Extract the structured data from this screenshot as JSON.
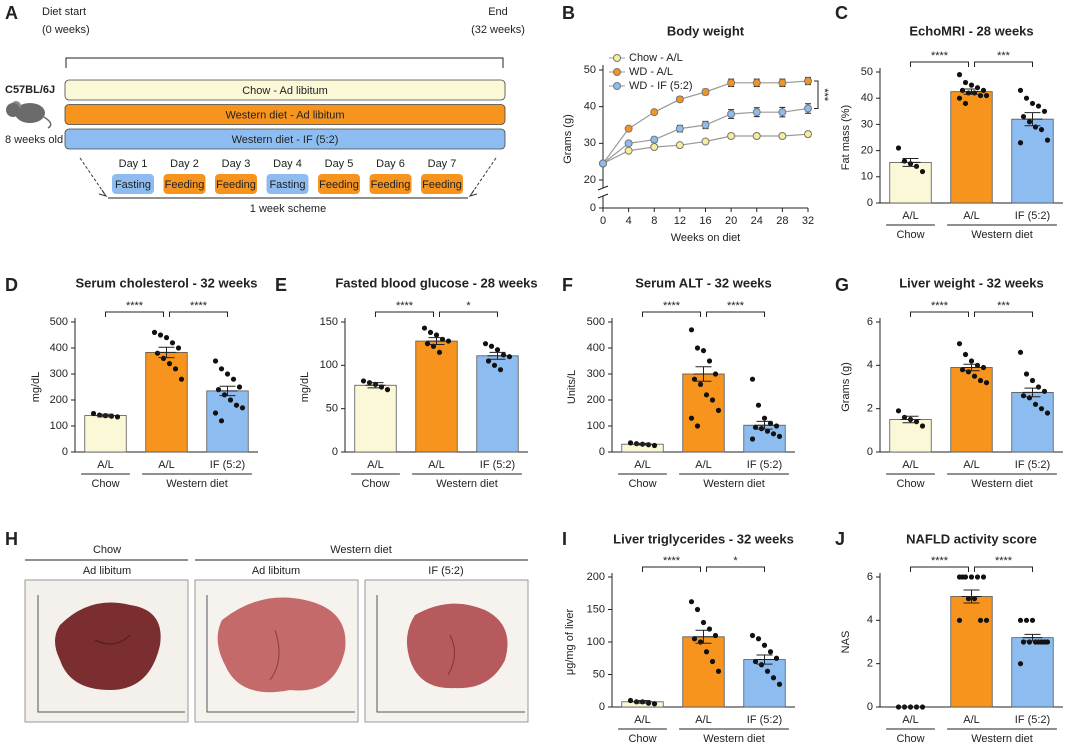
{
  "diagram": {
    "label": "A",
    "start": [
      "Diet start",
      "(0 weeks)"
    ],
    "end": [
      "End",
      "(32 weeks)"
    ],
    "strain": "C57BL/6J",
    "age": "8 weeks old",
    "groups": [
      {
        "name": "Chow - Ad libitum",
        "color": "#fbf8d8"
      },
      {
        "name": "Western diet - Ad libitum",
        "color": "#f7941d"
      },
      {
        "name": "Western diet - IF (5:2)",
        "color": "#8dbdf0"
      }
    ],
    "days": [
      {
        "day": "Day 1",
        "state": "Fasting",
        "color": "#8dbdf0"
      },
      {
        "day": "Day 2",
        "state": "Feeding",
        "color": "#f7941d"
      },
      {
        "day": "Day 3",
        "state": "Feeding",
        "color": "#f7941d"
      },
      {
        "day": "Day 4",
        "state": "Fasting",
        "color": "#8dbdf0"
      },
      {
        "day": "Day 5",
        "state": "Feeding",
        "color": "#f7941d"
      },
      {
        "day": "Day 6",
        "state": "Feeding",
        "color": "#f7941d"
      },
      {
        "day": "Day 7",
        "state": "Feeding",
        "color": "#f7941d"
      }
    ],
    "scheme": "1 week scheme"
  },
  "photos": {
    "label": "H",
    "groups": [
      {
        "name": "Chow",
        "panels": [
          "Ad libitum"
        ]
      },
      {
        "name": "Western diet",
        "panels": [
          "Ad libitum",
          "IF (5:2)"
        ]
      }
    ]
  },
  "chart_data": [
    {
      "type": "line",
      "label": "B",
      "title": "Body weight",
      "xlabel": "Weeks on diet",
      "ylabel": "Grams (g)",
      "x": [
        0,
        4,
        8,
        12,
        16,
        20,
        24,
        28,
        32
      ],
      "xlim": [
        0,
        32
      ],
      "xticks": [
        0,
        4,
        8,
        12,
        16,
        20,
        24,
        28,
        32
      ],
      "ylim": [
        20,
        50
      ],
      "yticks": [
        20,
        30,
        40,
        50
      ],
      "ybreak_tick": 0,
      "legend": "upper left",
      "annotation": "***",
      "series": [
        {
          "name": "Chow - A/L",
          "color": "#f5ef9a",
          "values": [
            24.5,
            28,
            29,
            29.5,
            30.5,
            32,
            32,
            32,
            32.5
          ],
          "errors": [
            0.5,
            0.5,
            0.5,
            0.5,
            0.5,
            0.6,
            0.6,
            0.6,
            0.7
          ]
        },
        {
          "name": "WD - A/L",
          "color": "#f7941d",
          "values": [
            24.5,
            34,
            38.5,
            42,
            44,
            46.5,
            46.5,
            46.5,
            47
          ],
          "errors": [
            0.4,
            0.5,
            0.6,
            0.7,
            0.8,
            1,
            1,
            1,
            1
          ]
        },
        {
          "name": "WD - IF (5:2)",
          "color": "#8dbdf0",
          "values": [
            24.5,
            30,
            31,
            34,
            35,
            38,
            38.5,
            38.5,
            39.5
          ],
          "errors": [
            0.4,
            0.6,
            0.7,
            0.9,
            1,
            1.2,
            1.2,
            1.3,
            1.3
          ]
        }
      ]
    },
    {
      "type": "bar",
      "label": "C",
      "title": "EchoMRI - 28 weeks",
      "ylabel": "Fat mass (%)",
      "categories": [
        "A/L",
        "A/L",
        "IF (5:2)"
      ],
      "groups": [
        {
          "name": "Chow",
          "count": 1
        },
        {
          "name": "Western diet",
          "count": 2
        }
      ],
      "colors": [
        "#fbf8d8",
        "#f7941d",
        "#8dbdf0"
      ],
      "values": [
        15.5,
        42.5,
        32
      ],
      "errors": [
        1.5,
        1,
        2.5
      ],
      "points": [
        [
          21,
          16,
          15,
          14,
          12
        ],
        [
          49,
          46,
          45,
          44,
          43,
          43,
          42,
          42,
          41,
          41,
          40,
          38
        ],
        [
          43,
          40,
          38,
          37,
          35,
          33,
          31,
          29,
          28,
          24,
          23
        ]
      ],
      "ylim": [
        0,
        50
      ],
      "yticks": [
        0,
        10,
        20,
        30,
        40,
        50
      ],
      "significance": [
        {
          "from": 0,
          "to": 1,
          "label": "****"
        },
        {
          "from": 1,
          "to": 2,
          "label": "***"
        }
      ]
    },
    {
      "type": "bar",
      "label": "D",
      "title": "Serum cholesterol - 32 weeks",
      "ylabel": "mg/dL",
      "categories": [
        "A/L",
        "A/L",
        "IF (5:2)"
      ],
      "groups": [
        {
          "name": "Chow",
          "count": 1
        },
        {
          "name": "Western diet",
          "count": 2
        }
      ],
      "colors": [
        "#fbf8d8",
        "#f7941d",
        "#8dbdf0"
      ],
      "values": [
        140,
        383,
        235
      ],
      "errors": [
        5,
        20,
        18
      ],
      "points": [
        [
          148,
          142,
          140,
          138,
          135
        ],
        [
          460,
          450,
          440,
          420,
          400,
          380,
          360,
          340,
          320,
          280
        ],
        [
          350,
          320,
          300,
          280,
          250,
          240,
          220,
          200,
          180,
          170,
          150,
          120
        ]
      ],
      "ylim": [
        0,
        500
      ],
      "yticks": [
        0,
        100,
        200,
        300,
        400,
        500
      ],
      "significance": [
        {
          "from": 0,
          "to": 1,
          "label": "****"
        },
        {
          "from": 1,
          "to": 2,
          "label": "****"
        }
      ]
    },
    {
      "type": "bar",
      "label": "E",
      "title": "Fasted blood glucose - 28 weeks",
      "ylabel": "mg/dL",
      "categories": [
        "A/L",
        "A/L",
        "IF (5:2)"
      ],
      "groups": [
        {
          "name": "Chow",
          "count": 1
        },
        {
          "name": "Western diet",
          "count": 2
        }
      ],
      "colors": [
        "#fbf8d8",
        "#f7941d",
        "#8dbdf0"
      ],
      "values": [
        77,
        128,
        111
      ],
      "errors": [
        3,
        4,
        4
      ],
      "points": [
        [
          82,
          80,
          78,
          75,
          72
        ],
        [
          143,
          138,
          135,
          130,
          128,
          125,
          122,
          115
        ],
        [
          125,
          122,
          118,
          112,
          110,
          105,
          100,
          95
        ]
      ],
      "ylim": [
        0,
        150
      ],
      "yticks": [
        0,
        50,
        100,
        150
      ],
      "significance": [
        {
          "from": 0,
          "to": 1,
          "label": "****"
        },
        {
          "from": 1,
          "to": 2,
          "label": "*"
        }
      ]
    },
    {
      "type": "bar",
      "label": "F",
      "title": "Serum ALT - 32 weeks",
      "ylabel": "Units/L",
      "categories": [
        "A/L",
        "A/L",
        "IF (5:2)"
      ],
      "groups": [
        {
          "name": "Chow",
          "count": 1
        },
        {
          "name": "Western diet",
          "count": 2
        }
      ],
      "colors": [
        "#fbf8d8",
        "#f7941d",
        "#8dbdf0"
      ],
      "values": [
        30,
        300,
        103
      ],
      "errors": [
        3,
        28,
        15
      ],
      "points": [
        [
          35,
          32,
          30,
          28,
          25
        ],
        [
          470,
          400,
          390,
          350,
          300,
          280,
          260,
          220,
          200,
          160,
          130,
          100
        ],
        [
          280,
          180,
          130,
          110,
          100,
          95,
          90,
          80,
          70,
          60,
          50
        ]
      ],
      "ylim": [
        0,
        500
      ],
      "yticks": [
        0,
        100,
        200,
        300,
        400,
        500
      ],
      "significance": [
        {
          "from": 0,
          "to": 1,
          "label": "****"
        },
        {
          "from": 1,
          "to": 2,
          "label": "****"
        }
      ]
    },
    {
      "type": "bar",
      "label": "G",
      "title": "Liver weight - 32 weeks",
      "ylabel": "Grams (g)",
      "categories": [
        "A/L",
        "A/L",
        "IF (5:2)"
      ],
      "groups": [
        {
          "name": "Chow",
          "count": 1
        },
        {
          "name": "Western diet",
          "count": 2
        }
      ],
      "colors": [
        "#fbf8d8",
        "#f7941d",
        "#8dbdf0"
      ],
      "values": [
        1.5,
        3.9,
        2.75
      ],
      "errors": [
        0.15,
        0.15,
        0.2
      ],
      "points": [
        [
          1.9,
          1.6,
          1.5,
          1.4,
          1.2
        ],
        [
          5,
          4.5,
          4.2,
          4,
          3.9,
          3.8,
          3.7,
          3.5,
          3.3,
          3.2
        ],
        [
          4.6,
          3.6,
          3.3,
          3,
          2.8,
          2.6,
          2.5,
          2.2,
          2,
          1.8
        ]
      ],
      "ylim": [
        0,
        6
      ],
      "yticks": [
        0,
        2,
        4,
        6
      ],
      "significance": [
        {
          "from": 0,
          "to": 1,
          "label": "****"
        },
        {
          "from": 1,
          "to": 2,
          "label": "***"
        }
      ]
    },
    {
      "type": "bar",
      "label": "I",
      "title": "Liver triglycerides - 32 weeks",
      "ylabel": "μg/mg of liver",
      "categories": [
        "A/L",
        "A/L",
        "IF (5:2)"
      ],
      "groups": [
        {
          "name": "Chow",
          "count": 1
        },
        {
          "name": "Western diet",
          "count": 2
        }
      ],
      "colors": [
        "#fbf8d8",
        "#f7941d",
        "#8dbdf0"
      ],
      "values": [
        8,
        108,
        73
      ],
      "errors": [
        2,
        10,
        7
      ],
      "points": [
        [
          10,
          8,
          8,
          6,
          5
        ],
        [
          162,
          150,
          130,
          120,
          110,
          105,
          100,
          85,
          70,
          55
        ],
        [
          110,
          105,
          95,
          85,
          75,
          70,
          65,
          55,
          45,
          35
        ]
      ],
      "ylim": [
        0,
        200
      ],
      "yticks": [
        0,
        50,
        100,
        150,
        200
      ],
      "significance": [
        {
          "from": 0,
          "to": 1,
          "label": "****"
        },
        {
          "from": 1,
          "to": 2,
          "label": "*"
        }
      ]
    },
    {
      "type": "bar",
      "label": "J",
      "title": "NAFLD activity score",
      "ylabel": "NAS",
      "categories": [
        "A/L",
        "A/L",
        "IF (5:2)"
      ],
      "groups": [
        {
          "name": "Chow",
          "count": 1
        },
        {
          "name": "Western diet",
          "count": 2
        }
      ],
      "colors": [
        "#fbf8d8",
        "#f7941d",
        "#8dbdf0"
      ],
      "values": [
        0,
        5.1,
        3.2
      ],
      "errors": [
        0,
        0.3,
        0.15
      ],
      "points": [
        [
          0,
          0,
          0,
          0,
          0
        ],
        [
          6,
          6,
          6,
          6,
          6,
          6,
          5,
          5,
          4,
          4,
          4
        ],
        [
          4,
          4,
          4,
          3,
          3,
          3,
          3,
          3,
          3,
          3,
          2
        ]
      ],
      "ylim": [
        0,
        6
      ],
      "yticks": [
        0,
        2,
        4,
        6
      ],
      "significance": [
        {
          "from": 0,
          "to": 1,
          "label": "****"
        },
        {
          "from": 1,
          "to": 2,
          "label": "****"
        }
      ]
    }
  ]
}
